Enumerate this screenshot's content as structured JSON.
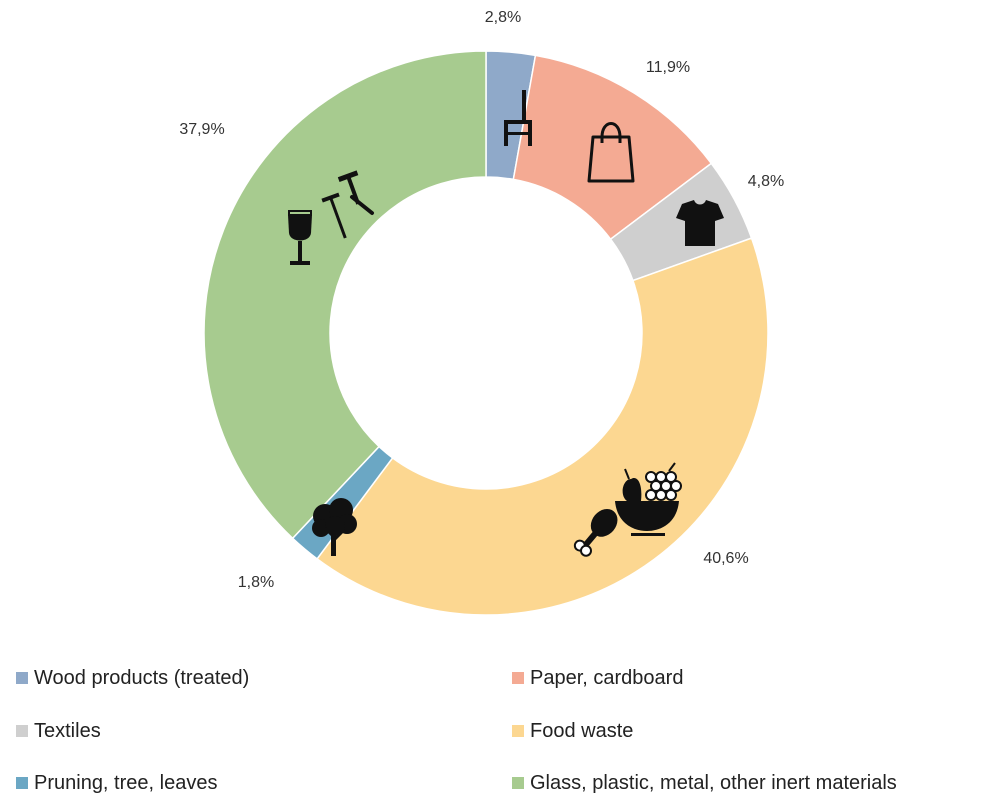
{
  "chart_data": {
    "type": "pie",
    "categories": [
      "Wood products (treated)",
      "Paper, cardboard",
      "Textiles",
      "Food waste",
      "Pruning, tree, leaves",
      "Glass, plastic, metal, other inert materials"
    ],
    "values": [
      2.8,
      11.9,
      4.8,
      40.6,
      1.8,
      37.9
    ],
    "value_labels": [
      "2,8%",
      "11,9%",
      "4,8%",
      "40,6%",
      "1,8%",
      "37,9%"
    ],
    "slice_order_clockwise_from_top": [
      "Wood products (treated)",
      "Paper, cardboard",
      "Textiles",
      "Food waste",
      "Pruning, tree, leaves",
      "Glass, plastic, metal, other inert materials"
    ],
    "colors": [
      "#8FA9C9",
      "#F4AA93",
      "#CFCFCF",
      "#FCD791",
      "#6BA7C4",
      "#A7CB8F"
    ],
    "donut": true,
    "icons": [
      "chair-icon",
      "shopping-bag-icon",
      "t-shirt-icon",
      "food-icon",
      "tree-icon",
      "glass-and-tools-icon"
    ],
    "legend_position": "bottom"
  },
  "legend": {
    "items": [
      {
        "label": "Wood products (treated)",
        "color": "#8FA9C9"
      },
      {
        "label": "Paper, cardboard",
        "color": "#F4AA93"
      },
      {
        "label": "Textiles",
        "color": "#CFCFCF"
      },
      {
        "label": "Food waste",
        "color": "#FCD791"
      },
      {
        "label": "Pruning, tree, leaves",
        "color": "#6BA7C4"
      },
      {
        "label": "Glass, plastic, metal, other inert materials",
        "color": "#A7CB8F"
      }
    ]
  }
}
